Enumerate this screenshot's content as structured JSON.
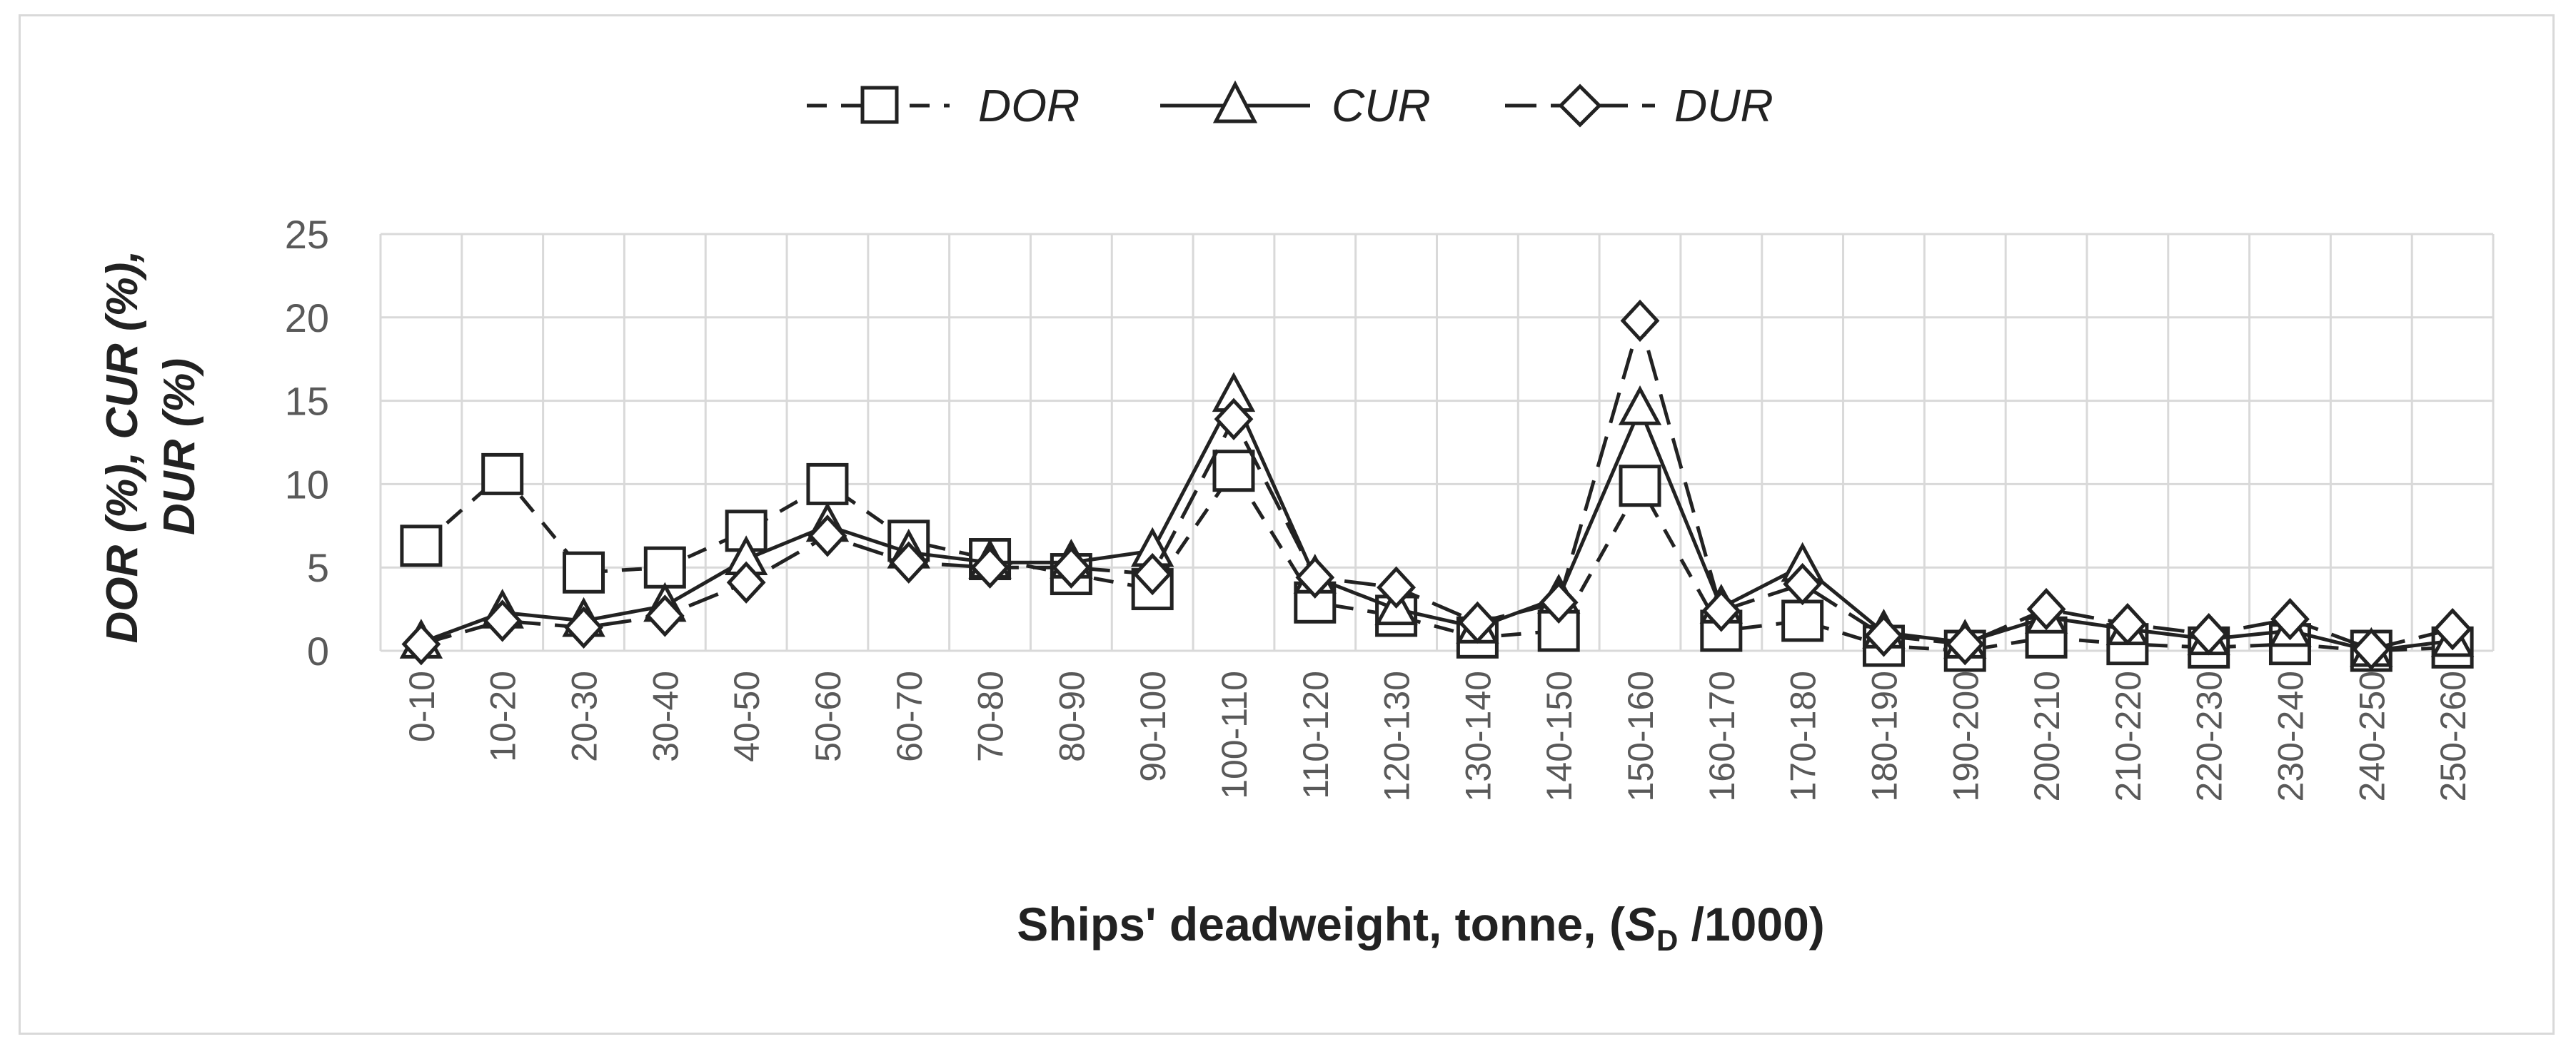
{
  "chart_data": {
    "type": "line",
    "xlabel_main": "Ships' deadweight, tonne, (",
    "xlabel_var": "S",
    "xlabel_sub": "D",
    "xlabel_tail": " /1000)",
    "ylabel_line1": "DOR (%), CUR (%),",
    "ylabel_line2": "DUR (%)",
    "ylim": [
      0,
      25
    ],
    "yticks": [
      "0",
      "5",
      "10",
      "15",
      "20",
      "25"
    ],
    "grid": true,
    "legend_position": "top",
    "categories": [
      "0-10",
      "10-20",
      "20-30",
      "30-40",
      "40-50",
      "50-60",
      "60-70",
      "70-80",
      "80-90",
      "90-100",
      "100-110",
      "110-120",
      "120-130",
      "130-140",
      "140-150",
      "150-160",
      "160-170",
      "170-180",
      "180-190",
      "190-200",
      "200-210",
      "210-220",
      "220-230",
      "230-240",
      "240-250",
      "250-260"
    ],
    "series": [
      {
        "name": "DOR",
        "marker": "square",
        "dash": "dashed",
        "values": [
          6.3,
          10.6,
          4.7,
          5.0,
          7.2,
          10.0,
          6.6,
          5.5,
          4.6,
          3.7,
          10.8,
          2.9,
          2.1,
          0.8,
          1.2,
          9.9,
          1.2,
          1.8,
          0.3,
          0.0,
          0.8,
          0.4,
          0.2,
          0.4,
          0.0,
          0.2
        ]
      },
      {
        "name": "CUR",
        "marker": "triangle",
        "dash": "solid",
        "values": [
          0.5,
          2.3,
          1.8,
          2.7,
          5.5,
          7.5,
          5.9,
          5.3,
          5.3,
          6.0,
          15.3,
          4.4,
          2.5,
          1.4,
          3.2,
          14.5,
          2.6,
          5.1,
          1.1,
          0.5,
          2.0,
          1.3,
          0.7,
          1.2,
          0.0,
          0.6
        ]
      },
      {
        "name": "DUR",
        "marker": "diamond",
        "dash": "longdash",
        "values": [
          0.4,
          1.8,
          1.4,
          2.1,
          4.1,
          6.9,
          5.3,
          5.0,
          5.0,
          4.6,
          13.9,
          4.4,
          3.8,
          1.7,
          2.9,
          19.8,
          2.4,
          4.0,
          0.9,
          0.4,
          2.5,
          1.6,
          1.0,
          1.9,
          0.1,
          1.3
        ]
      }
    ],
    "colors": {
      "line": "#222222",
      "grid": "#d9d9d9",
      "tick": "#595959"
    }
  }
}
